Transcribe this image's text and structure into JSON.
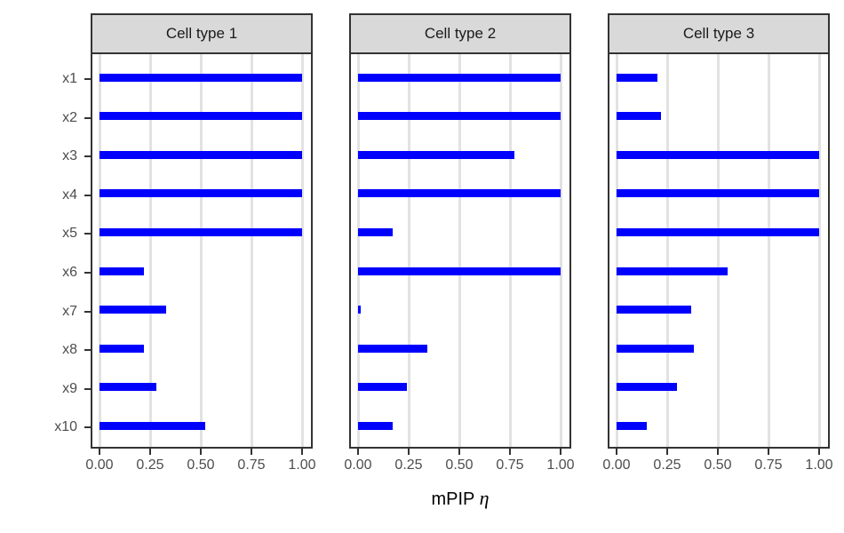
{
  "chart_data": {
    "type": "bar",
    "orientation": "horizontal",
    "title": "",
    "xlabel_main": "mPIP ",
    "xlabel_symbol": "η",
    "xlabel_full": "mPIP η",
    "categories": [
      "x1",
      "x2",
      "x3",
      "x4",
      "x5",
      "x6",
      "x7",
      "x8",
      "x9",
      "x10"
    ],
    "x_ticks": [
      "0.00",
      "0.25",
      "0.50",
      "0.75",
      "1.00"
    ],
    "x_tick_values": [
      0,
      0.25,
      0.5,
      0.75,
      1
    ],
    "xlim": [
      0,
      1
    ],
    "grid": "major-x-only",
    "legend": "none",
    "facets": [
      {
        "label": "Cell type 1",
        "values": [
          1.0,
          1.0,
          1.0,
          1.0,
          1.0,
          0.22,
          0.33,
          0.22,
          0.28,
          0.52
        ]
      },
      {
        "label": "Cell type 2",
        "values": [
          1.0,
          1.0,
          0.77,
          1.0,
          0.17,
          1.0,
          0.015,
          0.34,
          0.24,
          0.17
        ]
      },
      {
        "label": "Cell type 3",
        "values": [
          0.2,
          0.22,
          1.0,
          1.0,
          1.0,
          0.55,
          0.37,
          0.38,
          0.3,
          0.15
        ]
      }
    ],
    "colors": {
      "bar": "#0000ff",
      "strip_bg": "#d9d9d9",
      "panel_border": "#333333",
      "grid": "#e2e2e2",
      "axis_text": "#4d4d4d",
      "tick": "#333333",
      "title": "#000000"
    }
  }
}
